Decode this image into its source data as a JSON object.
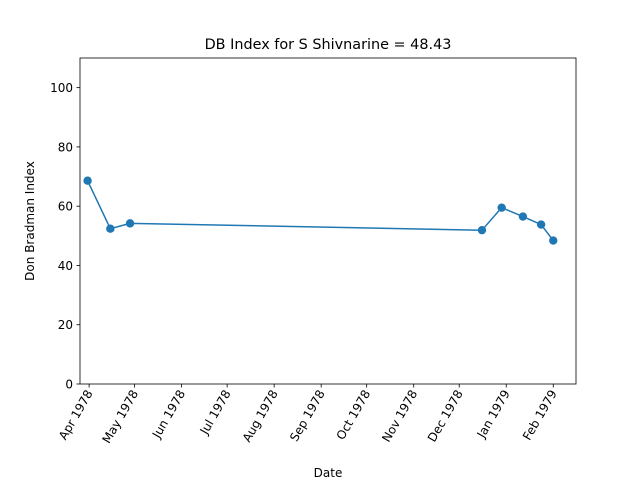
{
  "chart_data": {
    "type": "line",
    "title": "DB Index for S Shivnarine = 48.43",
    "xlabel": "Date",
    "ylabel": "Don Bradman Index",
    "ylim": [
      0,
      110
    ],
    "xlim": [
      "1978-03-26",
      "1979-02-16"
    ],
    "x_ticks": [
      {
        "date": "1978-04-01",
        "label": "Apr 1978"
      },
      {
        "date": "1978-05-01",
        "label": "May 1978"
      },
      {
        "date": "1978-06-01",
        "label": "Jun 1978"
      },
      {
        "date": "1978-07-01",
        "label": "Jul 1978"
      },
      {
        "date": "1978-08-01",
        "label": "Aug 1978"
      },
      {
        "date": "1978-09-01",
        "label": "Sep 1978"
      },
      {
        "date": "1978-10-01",
        "label": "Oct 1978"
      },
      {
        "date": "1978-11-01",
        "label": "Nov 1978"
      },
      {
        "date": "1978-12-01",
        "label": "Dec 1978"
      },
      {
        "date": "1979-01-01",
        "label": "Jan 1979"
      },
      {
        "date": "1979-02-01",
        "label": "Feb 1979"
      }
    ],
    "y_ticks": [
      0,
      20,
      40,
      60,
      80,
      100
    ],
    "grid": false,
    "legend": "none",
    "series": [
      {
        "color": "#1f77b4",
        "x": [
          "1978-03-31",
          "1978-04-15",
          "1978-04-28",
          "1978-12-16",
          "1978-12-29",
          "1979-01-12",
          "1979-01-24",
          "1979-02-01"
        ],
        "y": [
          68.6,
          52.4,
          54.2,
          51.9,
          59.5,
          56.5,
          53.8,
          48.4
        ]
      }
    ]
  }
}
